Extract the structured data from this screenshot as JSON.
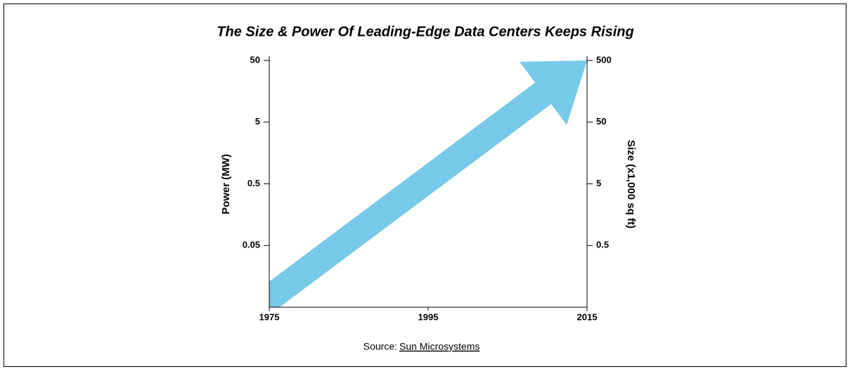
{
  "chart_data": {
    "type": "arrow",
    "title": "The Size & Power Of Leading-Edge Data Centers Keeps Rising",
    "y_label": "Power (MW)",
    "y2_label": "Size (x1,000 sq ft)",
    "source_prefix": "Source:",
    "source": "Sun Microsystems",
    "x": [
      1975,
      2015
    ],
    "values": [
      0.007,
      50
    ],
    "color": "#77c9ea",
    "xlim": [
      1975,
      2015
    ],
    "xticks": [
      1975,
      1995,
      2015
    ],
    "ylim": [
      0.005,
      50
    ],
    "yticks": [
      50,
      5,
      0.5,
      0.05
    ],
    "y2lim": [
      0.05,
      500
    ],
    "y2ticks": [
      500,
      50,
      5,
      0.5
    ],
    "log_scale": true
  }
}
